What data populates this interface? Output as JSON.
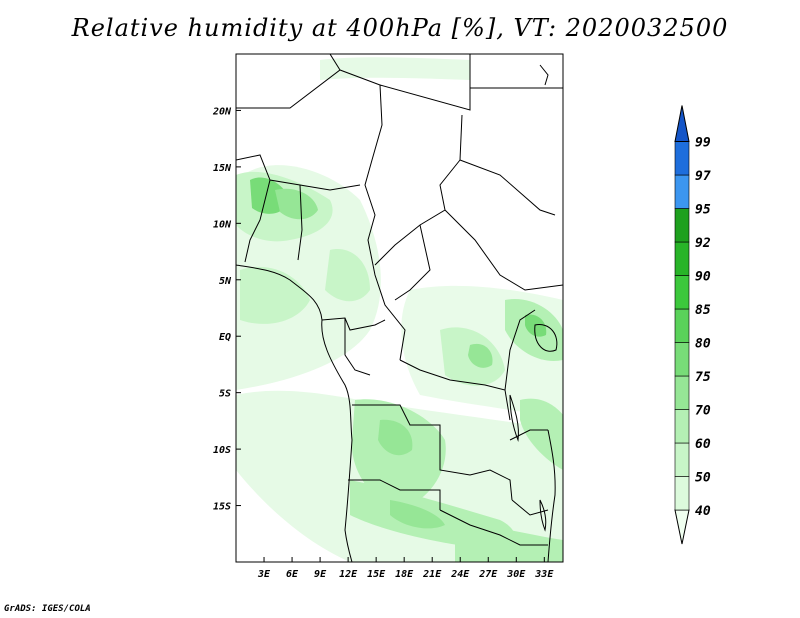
{
  "title": "Relative humidity at 400hPa [%], VT: 2020032500",
  "credit": "GrADS: IGES/COLA",
  "map": {
    "lon_range": [
      0,
      35
    ],
    "lat_range": [
      -20,
      25
    ],
    "x_ticks": [
      "3E",
      "6E",
      "9E",
      "12E",
      "15E",
      "18E",
      "21E",
      "24E",
      "27E",
      "30E",
      "33E"
    ],
    "y_ticks": [
      "20N",
      "15N",
      "10N",
      "5N",
      "EQ",
      "5S",
      "10S",
      "15S"
    ]
  },
  "colorbar": {
    "levels": [
      "40",
      "50",
      "60",
      "70",
      "75",
      "80",
      "85",
      "90",
      "92",
      "95",
      "97",
      "99"
    ],
    "colors": [
      "#f0fff0",
      "#dcfadc",
      "#c8f5c8",
      "#b4f0b4",
      "#96e696",
      "#78dc78",
      "#5ad25a",
      "#3cc83c",
      "#28b428",
      "#1ea01e",
      "#3c96f0",
      "#1e6edc",
      "#1455c8"
    ]
  },
  "icons": [
    "colorbar-upper-arrow",
    "colorbar-lower-arrow"
  ]
}
